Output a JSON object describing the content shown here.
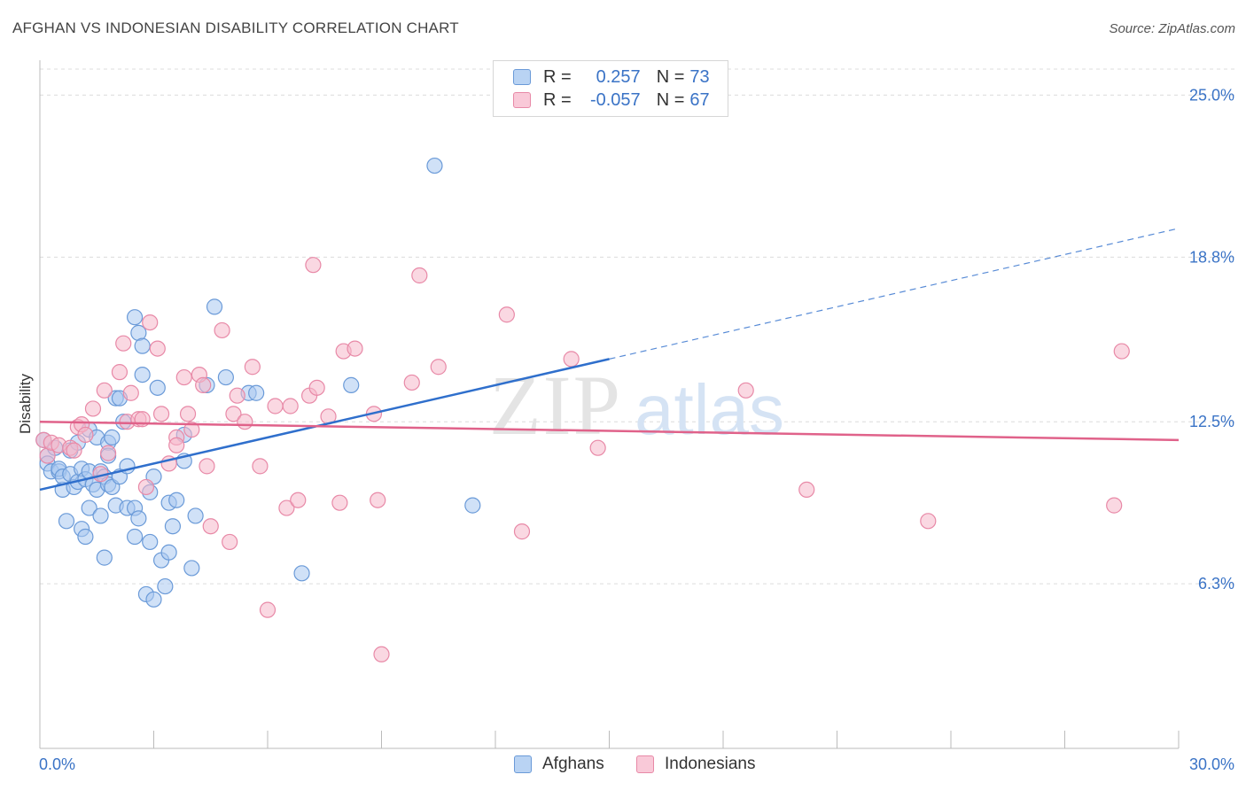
{
  "title": "AFGHAN VS INDONESIAN DISABILITY CORRELATION CHART",
  "source": "Source: ZipAtlas.com",
  "watermark": {
    "zip": "ZIP",
    "atlas": "atlas"
  },
  "legend": {
    "rows": [
      {
        "label": "R =",
        "r_value": "0.257",
        "n_label": "N =",
        "n_value": "73"
      },
      {
        "label": "R =",
        "r_value": "-0.057",
        "n_label": "N =",
        "n_value": "67"
      }
    ]
  },
  "colors": {
    "afghans_fill": "#a9c8f0",
    "afghans_stroke": "#6a9ad8",
    "afghans_line": "#2f6fcc",
    "indonesians_fill": "#f6b8cb",
    "indonesians_stroke": "#e889a7",
    "indonesians_line": "#e0628a",
    "tick_label": "#3a73c6"
  },
  "chart_data": {
    "type": "scatter",
    "title": "AFGHAN VS INDONESIAN DISABILITY CORRELATION CHART",
    "ylabel": "Disability",
    "xlabel": "",
    "xlim": [
      0,
      30
    ],
    "ylim": [
      0,
      26.2
    ],
    "x_tick_labels": [
      "0.0%",
      "30.0%"
    ],
    "y_tick_labels": [
      "25.0%",
      "18.8%",
      "12.5%",
      "6.3%"
    ],
    "y_tick_values": [
      25.0,
      18.8,
      12.5,
      6.3
    ],
    "grid": true,
    "legend_position": "top-center",
    "series": [
      {
        "name": "Afghans",
        "r": 0.257,
        "n": 73,
        "trend": {
          "x0": 0,
          "y0": 9.9,
          "x1": 15.0,
          "y1": 14.9,
          "dashed_to_x": 30,
          "dashed_to_y": 19.9
        },
        "points": [
          [
            0.1,
            11.8
          ],
          [
            0.2,
            11.2
          ],
          [
            0.2,
            10.9
          ],
          [
            0.3,
            10.6
          ],
          [
            0.4,
            11.5
          ],
          [
            0.5,
            10.6
          ],
          [
            0.5,
            10.7
          ],
          [
            0.6,
            9.9
          ],
          [
            0.6,
            10.4
          ],
          [
            0.7,
            8.7
          ],
          [
            0.8,
            10.5
          ],
          [
            0.8,
            11.4
          ],
          [
            0.9,
            10.0
          ],
          [
            1.0,
            11.7
          ],
          [
            1.0,
            10.2
          ],
          [
            1.1,
            10.7
          ],
          [
            1.1,
            8.4
          ],
          [
            1.2,
            10.3
          ],
          [
            1.2,
            8.1
          ],
          [
            1.3,
            10.6
          ],
          [
            1.3,
            12.2
          ],
          [
            1.3,
            9.2
          ],
          [
            1.4,
            10.1
          ],
          [
            1.5,
            11.9
          ],
          [
            1.5,
            9.9
          ],
          [
            1.6,
            10.6
          ],
          [
            1.6,
            8.9
          ],
          [
            1.7,
            10.4
          ],
          [
            1.7,
            7.3
          ],
          [
            1.8,
            11.7
          ],
          [
            1.8,
            10.1
          ],
          [
            1.8,
            11.2
          ],
          [
            1.9,
            11.9
          ],
          [
            1.9,
            10.0
          ],
          [
            2.0,
            13.4
          ],
          [
            2.0,
            9.3
          ],
          [
            2.1,
            10.4
          ],
          [
            2.1,
            13.4
          ],
          [
            2.2,
            12.5
          ],
          [
            2.3,
            10.8
          ],
          [
            2.3,
            9.2
          ],
          [
            2.5,
            16.5
          ],
          [
            2.5,
            9.2
          ],
          [
            2.5,
            8.1
          ],
          [
            2.6,
            15.9
          ],
          [
            2.6,
            8.8
          ],
          [
            2.7,
            15.4
          ],
          [
            2.7,
            14.3
          ],
          [
            2.8,
            5.9
          ],
          [
            2.9,
            9.8
          ],
          [
            2.9,
            7.9
          ],
          [
            3.0,
            5.7
          ],
          [
            3.0,
            10.4
          ],
          [
            3.1,
            13.8
          ],
          [
            3.2,
            7.2
          ],
          [
            3.3,
            6.2
          ],
          [
            3.4,
            7.5
          ],
          [
            3.4,
            9.4
          ],
          [
            3.5,
            8.5
          ],
          [
            3.6,
            9.5
          ],
          [
            3.8,
            11.0
          ],
          [
            3.8,
            12.0
          ],
          [
            4.0,
            6.9
          ],
          [
            4.1,
            8.9
          ],
          [
            4.4,
            13.9
          ],
          [
            4.6,
            16.9
          ],
          [
            4.9,
            14.2
          ],
          [
            5.5,
            13.6
          ],
          [
            5.7,
            13.6
          ],
          [
            6.9,
            6.7
          ],
          [
            8.2,
            13.9
          ],
          [
            10.4,
            22.3
          ],
          [
            11.4,
            9.3
          ]
        ]
      },
      {
        "name": "Indonesians",
        "r": -0.057,
        "n": 67,
        "trend": {
          "x0": 0,
          "y0": 12.5,
          "x1": 30,
          "y1": 11.8
        },
        "points": [
          [
            0.1,
            11.8
          ],
          [
            0.2,
            11.2
          ],
          [
            0.3,
            11.7
          ],
          [
            0.5,
            11.6
          ],
          [
            0.8,
            11.5
          ],
          [
            0.9,
            11.4
          ],
          [
            1.0,
            12.3
          ],
          [
            1.1,
            12.4
          ],
          [
            1.2,
            12.0
          ],
          [
            1.4,
            13.0
          ],
          [
            1.6,
            10.5
          ],
          [
            1.7,
            13.7
          ],
          [
            1.8,
            11.3
          ],
          [
            2.1,
            14.4
          ],
          [
            2.2,
            15.5
          ],
          [
            2.3,
            12.5
          ],
          [
            2.4,
            13.6
          ],
          [
            2.6,
            12.6
          ],
          [
            2.7,
            12.6
          ],
          [
            2.8,
            10.0
          ],
          [
            2.9,
            16.3
          ],
          [
            3.1,
            15.3
          ],
          [
            3.2,
            12.8
          ],
          [
            3.4,
            10.9
          ],
          [
            3.6,
            11.9
          ],
          [
            3.6,
            11.6
          ],
          [
            3.8,
            14.2
          ],
          [
            3.9,
            12.8
          ],
          [
            4.0,
            12.2
          ],
          [
            4.2,
            14.3
          ],
          [
            4.3,
            13.9
          ],
          [
            4.4,
            10.8
          ],
          [
            4.5,
            8.5
          ],
          [
            4.8,
            16.0
          ],
          [
            5.0,
            7.9
          ],
          [
            5.1,
            12.8
          ],
          [
            5.2,
            13.5
          ],
          [
            5.4,
            12.5
          ],
          [
            5.6,
            14.6
          ],
          [
            5.8,
            10.8
          ],
          [
            6.0,
            5.3
          ],
          [
            6.2,
            13.1
          ],
          [
            6.5,
            9.2
          ],
          [
            6.6,
            13.1
          ],
          [
            6.8,
            9.5
          ],
          [
            7.1,
            13.5
          ],
          [
            7.2,
            18.5
          ],
          [
            7.3,
            13.8
          ],
          [
            7.6,
            12.7
          ],
          [
            7.9,
            9.4
          ],
          [
            8.0,
            15.2
          ],
          [
            8.3,
            15.3
          ],
          [
            8.8,
            12.8
          ],
          [
            8.9,
            9.5
          ],
          [
            9.0,
            3.6
          ],
          [
            9.8,
            14.0
          ],
          [
            10.0,
            18.1
          ],
          [
            10.5,
            14.6
          ],
          [
            12.3,
            16.6
          ],
          [
            12.7,
            8.3
          ],
          [
            14.0,
            14.9
          ],
          [
            14.7,
            11.5
          ],
          [
            18.6,
            13.7
          ],
          [
            20.2,
            9.9
          ],
          [
            23.4,
            8.7
          ],
          [
            28.3,
            9.3
          ],
          [
            28.5,
            15.2
          ]
        ]
      }
    ]
  }
}
